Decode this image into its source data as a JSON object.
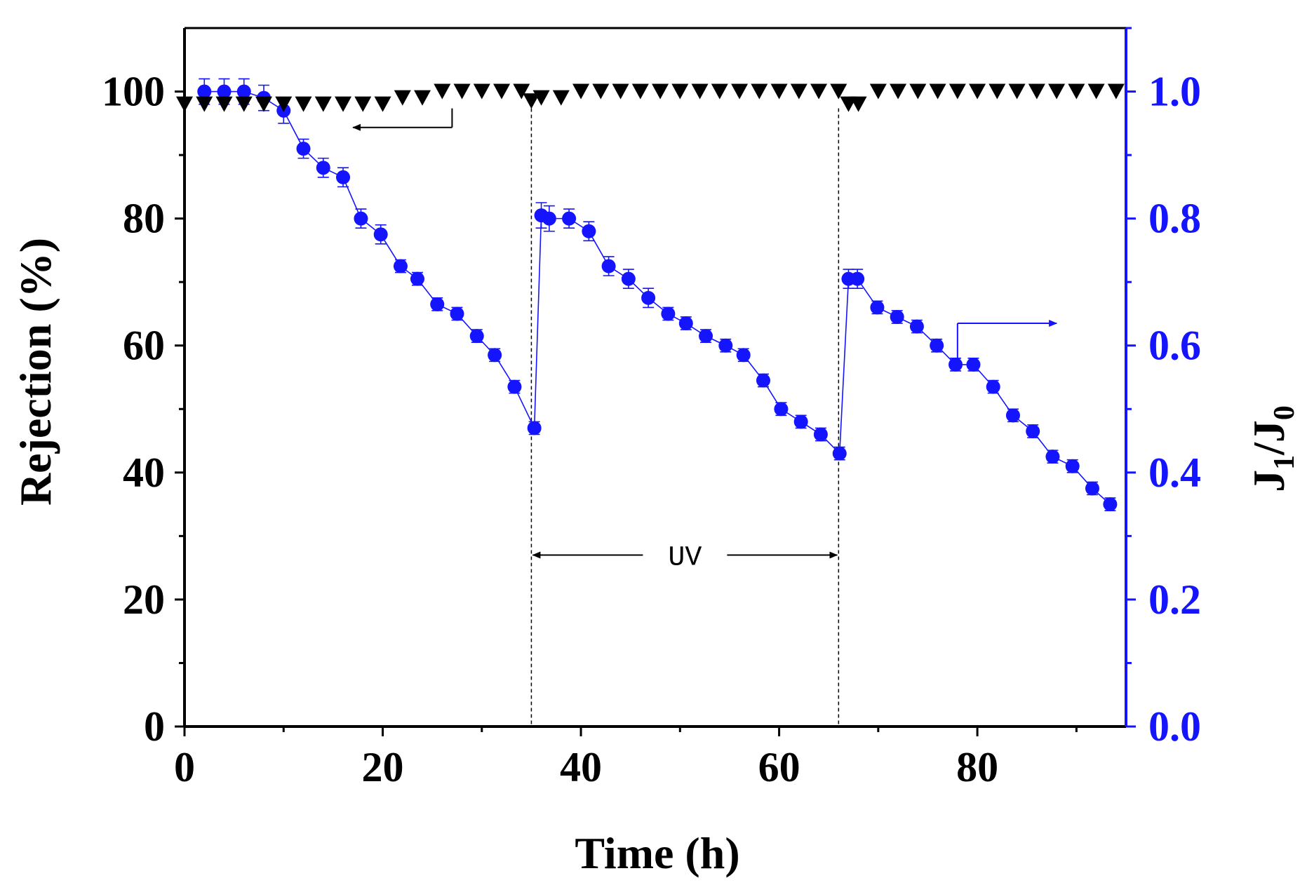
{
  "chart_data": {
    "type": "scatter",
    "xlabel": "Time (h)",
    "ylabel_left": "Rejection (%)",
    "ylabel_right": {
      "main": "J",
      "sub1": "1",
      "slash": "/J",
      "sub2": "0"
    },
    "xlim": [
      0,
      95
    ],
    "ylim_left": [
      0,
      110
    ],
    "ylim_right": [
      0,
      1.1
    ],
    "x_ticks": [
      "0",
      "20",
      "40",
      "60",
      "80"
    ],
    "y_left_ticks": [
      "0",
      "20",
      "40",
      "60",
      "80",
      "100"
    ],
    "y_right_ticks": [
      "0.0",
      "0.2",
      "0.4",
      "0.6",
      "0.8",
      "1.0"
    ],
    "annotation": "UV",
    "uv_period": [
      35,
      66
    ],
    "colors": {
      "axis": "#000000",
      "right_axis": "#1414ff",
      "flux": "#1414ff",
      "rejection": "#000000"
    },
    "series": [
      {
        "name": "Rejection",
        "axis": "left",
        "marker": "triangle-down",
        "x": [
          0,
          2,
          4,
          6,
          8,
          10,
          12,
          14,
          16,
          18,
          20,
          22,
          24,
          26,
          28,
          30,
          32,
          34,
          35,
          36,
          38,
          40,
          42,
          44,
          46,
          48,
          50,
          52,
          54,
          56,
          58,
          60,
          62,
          64,
          66,
          67,
          68,
          70,
          72,
          74,
          76,
          78,
          80,
          82,
          84,
          86,
          88,
          90,
          92,
          94
        ],
        "values": [
          98,
          98,
          98,
          98,
          98,
          98,
          98,
          98,
          98,
          98,
          98,
          99,
          99,
          100,
          100,
          100,
          100,
          100,
          98.5,
          99,
          99,
          100,
          100,
          100,
          100,
          100,
          100,
          100,
          100,
          100,
          100,
          100,
          100,
          100,
          100,
          98,
          98,
          100,
          100,
          100,
          100,
          100,
          100,
          100,
          100,
          100,
          100,
          100,
          100,
          100
        ]
      },
      {
        "name": "J1/J0",
        "axis": "right",
        "marker": "circle",
        "x": [
          2,
          4,
          6,
          8,
          10,
          12,
          14,
          16,
          17.8,
          19.8,
          21.8,
          23.5,
          25.5,
          27.5,
          29.5,
          31.3,
          33.3,
          35.3,
          36,
          36.8,
          38.8,
          40.8,
          42.8,
          44.8,
          46.8,
          48.8,
          50.6,
          52.6,
          54.6,
          56.4,
          58.4,
          60.2,
          62.2,
          64.2,
          66.1,
          67,
          67.9,
          69.9,
          71.9,
          73.9,
          75.9,
          77.8,
          79.6,
          81.6,
          83.6,
          85.6,
          87.6,
          89.6,
          91.6,
          93.4
        ],
        "values": [
          1.0,
          1.0,
          1.0,
          0.99,
          0.97,
          0.91,
          0.88,
          0.865,
          0.8,
          0.775,
          0.725,
          0.705,
          0.665,
          0.65,
          0.615,
          0.585,
          0.535,
          0.47,
          0.805,
          0.8,
          0.8,
          0.78,
          0.725,
          0.705,
          0.675,
          0.65,
          0.635,
          0.615,
          0.6,
          0.585,
          0.545,
          0.5,
          0.48,
          0.46,
          0.43,
          0.705,
          0.705,
          0.66,
          0.645,
          0.63,
          0.6,
          0.57,
          0.57,
          0.535,
          0.49,
          0.465,
          0.425,
          0.41,
          0.375,
          0.35
        ],
        "error": [
          0.02,
          0.02,
          0.02,
          0.02,
          0.02,
          0.015,
          0.015,
          0.015,
          0.015,
          0.015,
          0.01,
          0.01,
          0.01,
          0.01,
          0.01,
          0.01,
          0.01,
          0.01,
          0.02,
          0.02,
          0.015,
          0.015,
          0.015,
          0.015,
          0.015,
          0.01,
          0.01,
          0.01,
          0.01,
          0.01,
          0.01,
          0.01,
          0.01,
          0.01,
          0.01,
          0.015,
          0.015,
          0.01,
          0.01,
          0.01,
          0.01,
          0.01,
          0.01,
          0.01,
          0.01,
          0.01,
          0.01,
          0.01,
          0.01,
          0.01
        ]
      }
    ]
  }
}
